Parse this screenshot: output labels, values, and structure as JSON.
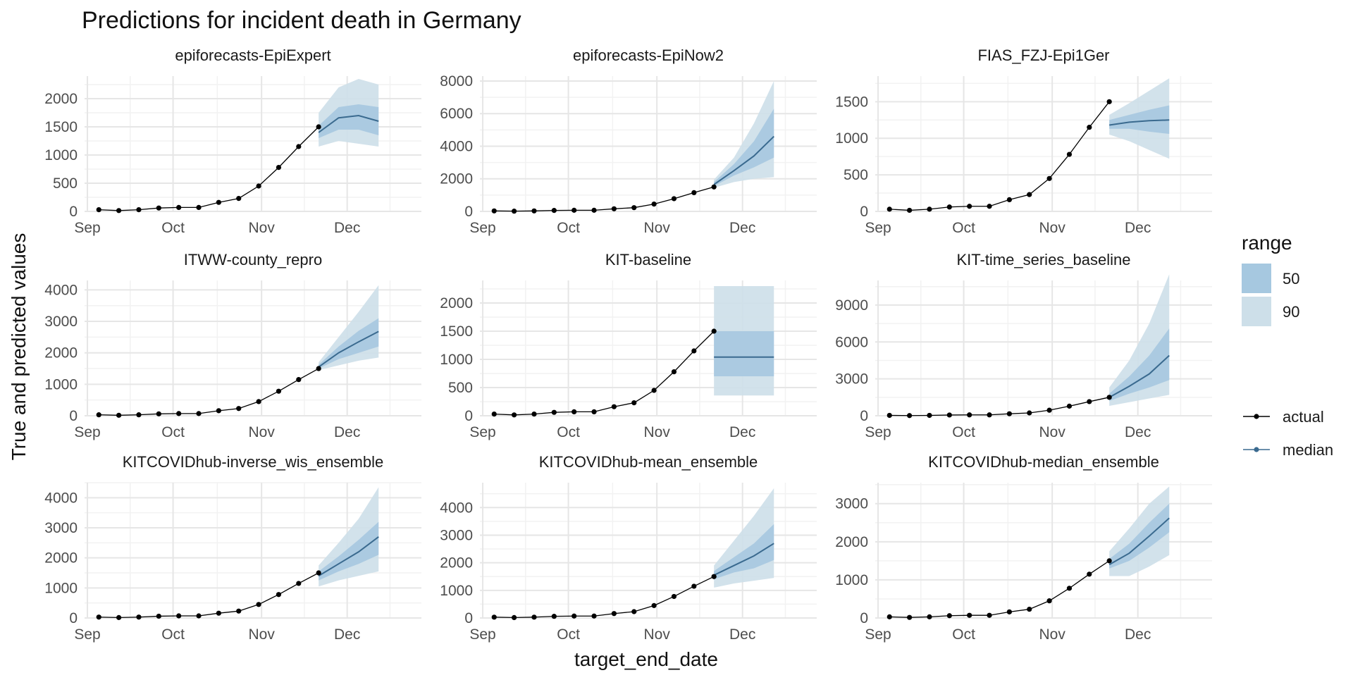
{
  "chart_data": {
    "type": "line",
    "title": "Predictions for incident death in Germany",
    "xlabel": "target_end_date",
    "ylabel": "True and predicted values",
    "x_ticks": [
      {
        "label": "Sep",
        "date": "2020-09-01"
      },
      {
        "label": "Oct",
        "date": "2020-10-01"
      },
      {
        "label": "Nov",
        "date": "2020-11-01"
      },
      {
        "label": "Dec",
        "date": "2020-12-01"
      }
    ],
    "x_range": [
      "2020-08-31",
      "2020-12-27"
    ],
    "actual_dates": [
      "2020-09-05",
      "2020-09-12",
      "2020-09-19",
      "2020-09-26",
      "2020-10-03",
      "2020-10-10",
      "2020-10-17",
      "2020-10-24",
      "2020-10-31",
      "2020-11-07",
      "2020-11-14",
      "2020-11-21"
    ],
    "actual_values": [
      30,
      15,
      30,
      60,
      70,
      70,
      160,
      230,
      450,
      780,
      1150,
      1500
    ],
    "forecast_dates": [
      "2020-11-21",
      "2020-11-28",
      "2020-12-05",
      "2020-12-12"
    ],
    "legend": {
      "range_title": "range",
      "range_items": [
        {
          "label": "50",
          "color": "#a6c8e0"
        },
        {
          "label": "90",
          "color": "#cddfe9"
        }
      ],
      "line_items": [
        {
          "label": "actual",
          "color": "#000000"
        },
        {
          "label": "median",
          "color": "#3a6a8f"
        }
      ]
    },
    "panels": [
      {
        "name": "epiforecasts-EpiExpert",
        "ylim": [
          0,
          2400
        ],
        "yticks": [
          0,
          500,
          1000,
          1500,
          2000
        ],
        "median": [
          1400,
          1660,
          1700,
          1600
        ],
        "q50_low": [
          1300,
          1450,
          1450,
          1350
        ],
        "q50_high": [
          1520,
          1850,
          1900,
          1850
        ],
        "q90_low": [
          1150,
          1250,
          1200,
          1150
        ],
        "q90_high": [
          1750,
          2200,
          2350,
          2250
        ]
      },
      {
        "name": "epiforecasts-EpiNow2",
        "ylim": [
          0,
          8300
        ],
        "yticks": [
          0,
          2000,
          4000,
          6000,
          8000
        ],
        "median": [
          1650,
          2500,
          3400,
          4600
        ],
        "q50_low": [
          1550,
          2200,
          2700,
          3300
        ],
        "q50_high": [
          1800,
          2900,
          4300,
          6300
        ],
        "q90_low": [
          1450,
          1800,
          2000,
          2100
        ],
        "q90_high": [
          1950,
          3300,
          5400,
          8000
        ]
      },
      {
        "name": "FIAS_FZJ-Epi1Ger",
        "ylim": [
          0,
          1850
        ],
        "yticks": [
          0,
          500,
          1000,
          1500
        ],
        "median": [
          1180,
          1220,
          1240,
          1250
        ],
        "q50_low": [
          1130,
          1130,
          1090,
          1060
        ],
        "q50_high": [
          1250,
          1320,
          1390,
          1450
        ],
        "q90_low": [
          1050,
          960,
          840,
          720
        ],
        "q90_high": [
          1320,
          1480,
          1650,
          1820
        ]
      },
      {
        "name": "ITWW-county_repro",
        "ylim": [
          0,
          4300
        ],
        "yticks": [
          0,
          1000,
          2000,
          3000,
          4000
        ],
        "median": [
          1550,
          2000,
          2350,
          2680
        ],
        "q50_low": [
          1500,
          1800,
          2000,
          2200
        ],
        "q50_high": [
          1620,
          2200,
          2700,
          3100
        ],
        "q90_low": [
          1450,
          1600,
          1750,
          1850
        ],
        "q90_high": [
          1700,
          2500,
          3300,
          4150
        ]
      },
      {
        "name": "KIT-baseline",
        "ylim": [
          0,
          2400
        ],
        "yticks": [
          0,
          500,
          1000,
          1500,
          2000
        ],
        "median": [
          1040,
          1040,
          1040,
          1040
        ],
        "q50_low": [
          700,
          700,
          700,
          700
        ],
        "q50_high": [
          1500,
          1500,
          1500,
          1500
        ],
        "q90_low": [
          360,
          360,
          360,
          360
        ],
        "q90_high": [
          2300,
          2300,
          2300,
          2300
        ]
      },
      {
        "name": "KIT-time_series_baseline",
        "ylim": [
          0,
          11000
        ],
        "yticks": [
          0,
          3000,
          6000,
          9000
        ],
        "median": [
          1500,
          2400,
          3400,
          4900
        ],
        "q50_low": [
          1200,
          1800,
          2300,
          2900
        ],
        "q50_high": [
          1800,
          3200,
          4900,
          7100
        ],
        "q90_low": [
          800,
          1100,
          1400,
          1700
        ],
        "q90_high": [
          2300,
          4500,
          7500,
          11500
        ]
      },
      {
        "name": "KITCOVIDhub-inverse_wis_ensemble",
        "ylim": [
          0,
          4500
        ],
        "yticks": [
          0,
          1000,
          2000,
          3000,
          4000
        ],
        "median": [
          1400,
          1800,
          2200,
          2700
        ],
        "q50_low": [
          1250,
          1550,
          1800,
          2100
        ],
        "q50_high": [
          1550,
          2050,
          2600,
          3200
        ],
        "q90_low": [
          1050,
          1250,
          1400,
          1550
        ],
        "q90_high": [
          1750,
          2500,
          3300,
          4350
        ]
      },
      {
        "name": "KITCOVIDhub-mean_ensemble",
        "ylim": [
          0,
          4900
        ],
        "yticks": [
          0,
          1000,
          2000,
          3000,
          4000
        ],
        "median": [
          1550,
          1900,
          2250,
          2700
        ],
        "q50_low": [
          1400,
          1650,
          1800,
          2100
        ],
        "q50_high": [
          1700,
          2200,
          2700,
          3400
        ],
        "q90_low": [
          1100,
          1250,
          1350,
          1450
        ],
        "q90_high": [
          1900,
          2800,
          3700,
          4700
        ]
      },
      {
        "name": "KITCOVIDhub-median_ensemble",
        "ylim": [
          0,
          3550
        ],
        "yticks": [
          0,
          1000,
          2000,
          3000
        ],
        "median": [
          1400,
          1700,
          2150,
          2620
        ],
        "q50_low": [
          1300,
          1500,
          1850,
          2250
        ],
        "q50_high": [
          1550,
          1950,
          2500,
          3000
        ],
        "q90_low": [
          1100,
          1100,
          1350,
          1650
        ],
        "q90_high": [
          1750,
          2350,
          3000,
          3450
        ]
      }
    ]
  }
}
